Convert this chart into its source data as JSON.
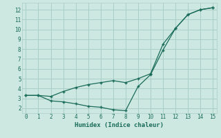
{
  "title": "",
  "xlabel": "Humidex (Indice chaleur)",
  "ylabel": "",
  "background_color": "#cce8e0",
  "grid_color": "#aacfc8",
  "line_color": "#1a6b5a",
  "series1_x": [
    0,
    1,
    2,
    3,
    4,
    5,
    6,
    7,
    8,
    9,
    10,
    11,
    12,
    13,
    14,
    15
  ],
  "series1_y": [
    3.3,
    3.3,
    2.75,
    2.65,
    2.45,
    2.2,
    2.1,
    1.85,
    1.75,
    4.2,
    5.4,
    7.9,
    10.1,
    11.5,
    12.0,
    12.2
  ],
  "series2_x": [
    0,
    1,
    2,
    3,
    4,
    5,
    6,
    7,
    8,
    9,
    10,
    11,
    12,
    13,
    14,
    15
  ],
  "series2_y": [
    3.3,
    3.3,
    3.2,
    3.7,
    4.1,
    4.4,
    4.6,
    4.8,
    4.6,
    5.0,
    5.5,
    8.5,
    10.1,
    11.5,
    12.0,
    12.2
  ],
  "xlim": [
    -0.3,
    15.3
  ],
  "ylim": [
    1.5,
    12.7
  ],
  "xticks": [
    0,
    1,
    2,
    3,
    4,
    5,
    6,
    7,
    8,
    9,
    10,
    11,
    12,
    13,
    14,
    15
  ],
  "yticks": [
    2,
    3,
    4,
    5,
    6,
    7,
    8,
    9,
    10,
    11,
    12
  ]
}
